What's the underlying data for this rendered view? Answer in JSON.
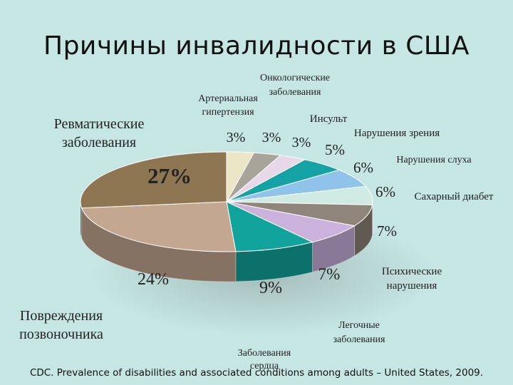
{
  "title": "Причины инвалидности в США",
  "source": "CDC. Prevalence of disabilities and associated conditions among adults – United States, 2009.",
  "chart_data": {
    "type": "pie",
    "title": "Причины инвалидности в США",
    "slices": [
      {
        "label": "Артериальная гипертензия",
        "value": 3,
        "value_label": "3%",
        "color": "#ece5c6"
      },
      {
        "label": "Онкологические заболевания",
        "value": 3,
        "value_label": "3%",
        "color": "#a8a49a"
      },
      {
        "label": "Инсульт",
        "value": 3,
        "value_label": "3%",
        "color": "#e6d8e8"
      },
      {
        "label": "Нарушения зрения",
        "value": 5,
        "value_label": "5%",
        "color": "#14a2a4"
      },
      {
        "label": "Нарушения слуха",
        "value": 6,
        "value_label": "6%",
        "color": "#8fc3ea"
      },
      {
        "label": "Сахарный диабет",
        "value": 6,
        "value_label": "6%",
        "color": "#cfe9e3"
      },
      {
        "label": "Психические нарушения",
        "value": 7,
        "value_label": "7%",
        "color": "#8f857a"
      },
      {
        "label": "Легочные заболевания",
        "value": 7,
        "value_label": "7%",
        "color": "#cbb2dc"
      },
      {
        "label": "Заболевания сердца",
        "value": 9,
        "value_label": "9%",
        "color": "#11a49d"
      },
      {
        "label": "Повреждения позвоночника",
        "value": 24,
        "value_label": "24%",
        "color": "#c4a790"
      },
      {
        "label": "Ревматические заболевания",
        "value": 27,
        "value_label": "27%",
        "color": "#8d7651"
      }
    ]
  }
}
